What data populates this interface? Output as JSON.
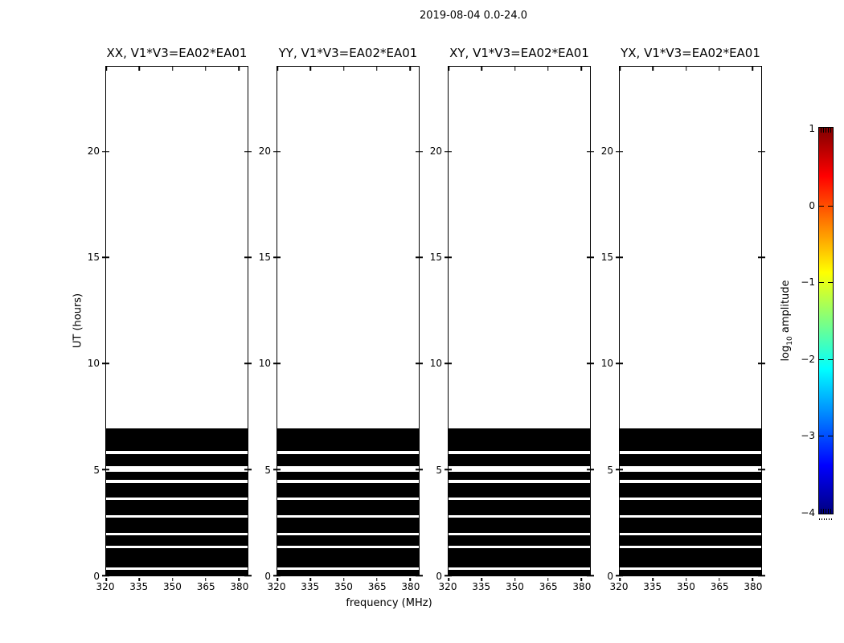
{
  "figure": {
    "title": "2019-08-04 0.0-24.0",
    "background_color": "#ffffff",
    "line_color": "#000000"
  },
  "chart_data": {
    "type": "heatmap",
    "title": "2019-08-04 0.0-24.0",
    "panels": [
      {
        "label": "XX, V1*V3=EA02*EA01"
      },
      {
        "label": "YY, V1*V3=EA02*EA01"
      },
      {
        "label": "XY, V1*V3=EA02*EA01"
      },
      {
        "label": "YX, V1*V3=EA02*EA01"
      }
    ],
    "xlabel": "frequency (MHz)",
    "ylabel": "UT (hours)",
    "x_range": [
      320,
      384
    ],
    "x_ticks": [
      320,
      335,
      350,
      365,
      380
    ],
    "y_range": [
      0,
      24
    ],
    "y_ticks": [
      0,
      5,
      10,
      15,
      20
    ],
    "grid": false,
    "band_color": "#000000",
    "black_bands_hours": [
      [
        0.0,
        0.27
      ],
      [
        0.38,
        1.28
      ],
      [
        1.4,
        1.88
      ],
      [
        2.0,
        2.72
      ],
      [
        2.84,
        3.55
      ],
      [
        3.67,
        4.38
      ],
      [
        4.5,
        4.91
      ],
      [
        5.14,
        5.74
      ],
      [
        5.86,
        6.95
      ]
    ],
    "colorbar": {
      "label_parts": {
        "prefix": "log",
        "sub": "10",
        "suffix": " amplitude"
      },
      "ticks": [
        1,
        0,
        -1,
        -2,
        -3,
        -4
      ],
      "range": [
        -4,
        1
      ],
      "colormap": "jet",
      "gradient_stops": [
        {
          "color": "#800000",
          "pos": 0
        },
        {
          "color": "#ff0000",
          "pos": 12.5
        },
        {
          "color": "#ffff00",
          "pos": 37.5
        },
        {
          "color": "#00ffff",
          "pos": 62.5
        },
        {
          "color": "#0000ff",
          "pos": 87.5
        },
        {
          "color": "#000080",
          "pos": 100
        }
      ]
    }
  }
}
